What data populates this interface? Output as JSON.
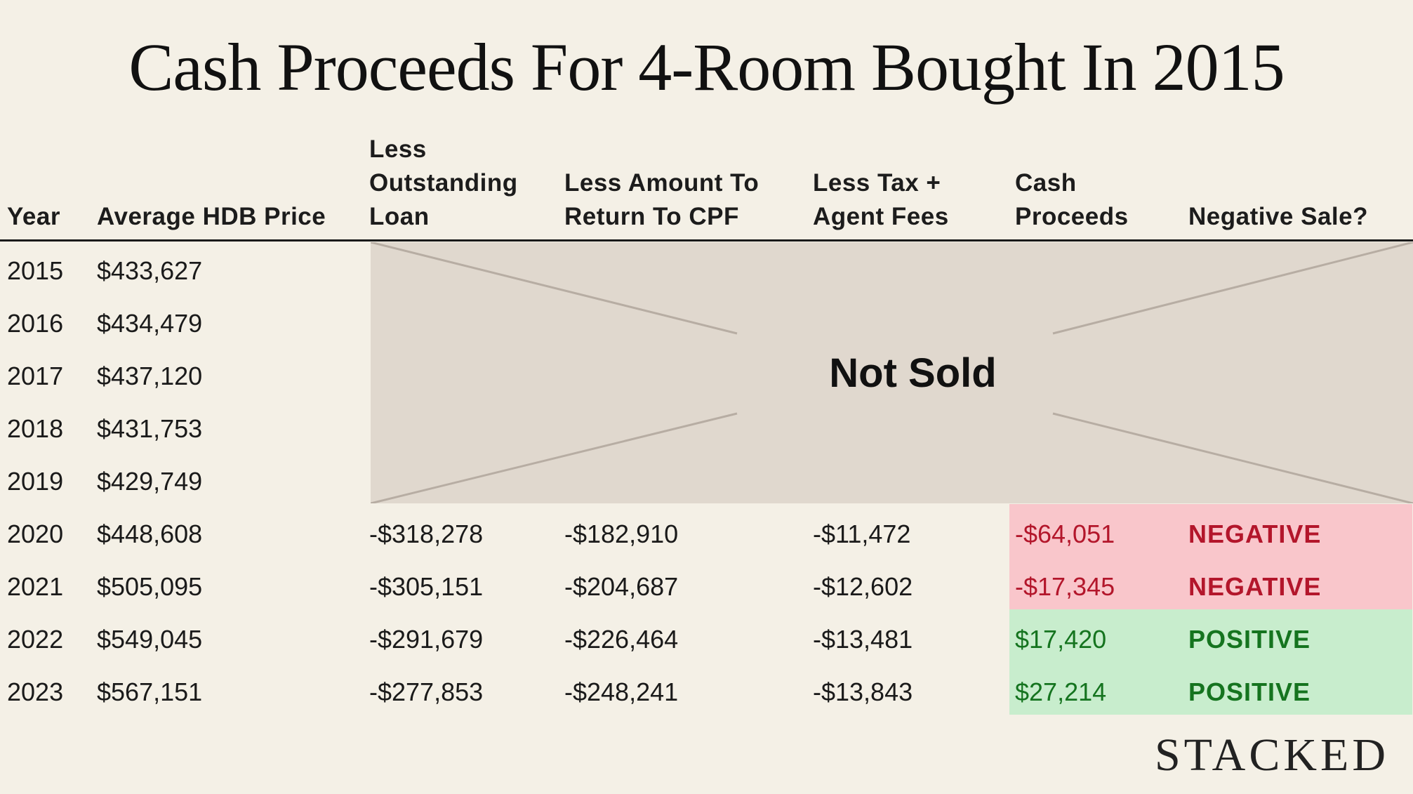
{
  "chart_data": {
    "type": "table",
    "title": "Cash Proceeds For 4-Room Bought In 2015",
    "columns": [
      [
        "Year"
      ],
      [
        "Average HDB Price"
      ],
      [
        "Less",
        "Outstanding",
        "Loan"
      ],
      [
        "Less Amount To",
        "Return To CPF"
      ],
      [
        "Less Tax +",
        "Agent Fees"
      ],
      [
        "Cash",
        "Proceeds"
      ],
      [
        "Negative Sale?"
      ]
    ],
    "rows": [
      {
        "year": "2015",
        "price": "$433,627"
      },
      {
        "year": "2016",
        "price": "$434,479"
      },
      {
        "year": "2017",
        "price": "$437,120"
      },
      {
        "year": "2018",
        "price": "$431,753"
      },
      {
        "year": "2019",
        "price": "$429,749"
      },
      {
        "year": "2020",
        "price": "$448,608",
        "loan": "-$318,278",
        "cpf": "-$182,910",
        "fees": "-$11,472",
        "cash": "-$64,051",
        "status": "NEGATIVE"
      },
      {
        "year": "2021",
        "price": "$505,095",
        "loan": "-$305,151",
        "cpf": "-$204,687",
        "fees": "-$12,602",
        "cash": "-$17,345",
        "status": "NEGATIVE"
      },
      {
        "year": "2022",
        "price": "$549,045",
        "loan": "-$291,679",
        "cpf": "-$226,464",
        "fees": "-$13,481",
        "cash": "$17,420",
        "status": "POSITIVE"
      },
      {
        "year": "2023",
        "price": "$567,151",
        "loan": "-$277,853",
        "cpf": "-$248,241",
        "fees": "-$13,843",
        "cash": "$27,214",
        "status": "POSITIVE"
      }
    ],
    "not_sold_label": "Not Sold",
    "colors": {
      "background": "#f4f0e6",
      "not_sold_fill": "#e0d8ce",
      "negative_fill": "#f9c6cb",
      "negative_text": "#b3162b",
      "positive_fill": "#c8edcd",
      "positive_text": "#15741f"
    }
  },
  "brand": "STACKED"
}
